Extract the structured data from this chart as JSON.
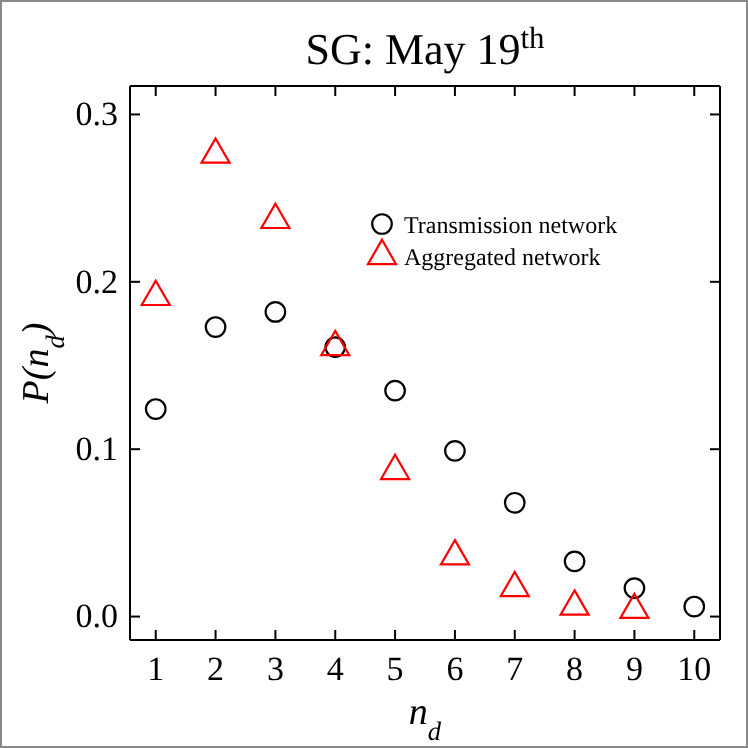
{
  "chart_data": {
    "type": "scatter",
    "title": "SG: May 19$^{th}$",
    "xlabel": "n$_{d}$",
    "ylabel": "P(n$_{d}$)",
    "x": [
      1,
      2,
      3,
      4,
      5,
      6,
      7,
      8,
      9,
      10
    ],
    "series": [
      {
        "name": "Transmission network",
        "color": "#000000",
        "marker": "circle",
        "values": [
          0.124,
          0.173,
          0.182,
          0.161,
          0.135,
          0.099,
          0.068,
          0.033,
          0.017,
          0.006
        ]
      },
      {
        "name": "Aggregated network",
        "color": "#ff0000",
        "marker": "triangle",
        "x": [
          1,
          2,
          3,
          4,
          5,
          6,
          7,
          8,
          9
        ],
        "values": [
          0.191,
          0.276,
          0.237,
          0.161,
          0.087,
          0.036,
          0.017,
          0.006,
          0.004
        ]
      }
    ],
    "xlim": [
      0.57,
      10.43
    ],
    "xticks": [
      1,
      2,
      3,
      4,
      5,
      6,
      7,
      8,
      9,
      10
    ],
    "ylim": [
      -0.014,
      0.317
    ],
    "yticks": [
      {
        "value": 0,
        "label": "0.0"
      },
      0.1,
      0.2,
      0.3
    ],
    "grid": false,
    "legend": "top right"
  }
}
